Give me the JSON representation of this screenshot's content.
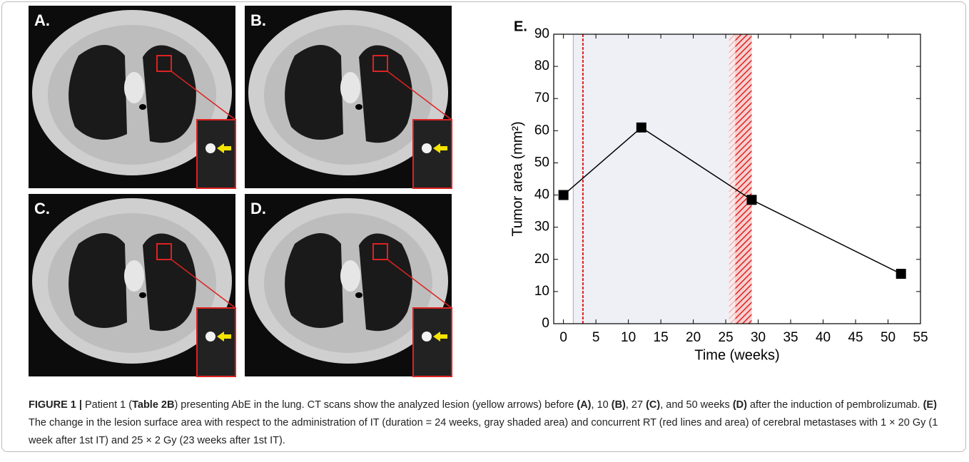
{
  "panels": [
    {
      "label": "A."
    },
    {
      "label": "B."
    },
    {
      "label": "C."
    },
    {
      "label": "D."
    }
  ],
  "chart_data": {
    "type": "line",
    "panel_label": "E.",
    "x_label": "Time (weeks)",
    "y_label": "Tumor area (mm²)",
    "x": [
      0,
      12,
      29,
      52
    ],
    "series": [
      {
        "color": "#000000",
        "values": [
          40,
          61,
          38.5,
          15.5
        ]
      }
    ],
    "xlim": [
      -1.5,
      55
    ],
    "ylim": [
      0,
      90
    ],
    "xticks": [
      0,
      5,
      10,
      15,
      20,
      25,
      30,
      35,
      40,
      45,
      50,
      55
    ],
    "yticks": [
      0,
      10,
      20,
      30,
      40,
      50,
      60,
      70,
      80,
      90
    ],
    "bands": [
      {
        "start": 1.5,
        "end": 26.5,
        "color": "#eef0f6"
      },
      {
        "start": 25.5,
        "end": 26.5,
        "color": "#f2b8b8"
      },
      {
        "start": 26.5,
        "end": 29,
        "color": "#e02020"
      }
    ],
    "lines": [
      {
        "x": 3,
        "color": "#e02020"
      }
    ]
  },
  "caption": [
    {
      "text": "FIGURE 1 | ",
      "bold": true
    },
    {
      "text": "Patient 1 (",
      "bold": false
    },
    {
      "text": "Table 2B",
      "bold": true
    },
    {
      "text": ") presenting AbE in the lung. CT scans show the analyzed lesion (yellow arrows) before ",
      "bold": false
    },
    {
      "text": "(A)",
      "bold": true
    },
    {
      "text": ", 10 ",
      "bold": false
    },
    {
      "text": "(B)",
      "bold": true
    },
    {
      "text": ", 27 ",
      "bold": false
    },
    {
      "text": "(C)",
      "bold": true
    },
    {
      "text": ", and 50 weeks ",
      "bold": false
    },
    {
      "text": "(D)",
      "bold": true
    },
    {
      "text": " after the induction of pembrolizumab. ",
      "bold": false
    },
    {
      "text": "(E)",
      "bold": true
    },
    {
      "text": " The change in the lesion surface area with respect to the administration of IT (duration = 24 weeks, gray shaded area) and concurrent RT (red lines and area) of cerebral metastases with 1 × 20 Gy (1 week after 1st IT) and 25 × 2 Gy (23 weeks after 1st IT).",
      "bold": false
    }
  ]
}
